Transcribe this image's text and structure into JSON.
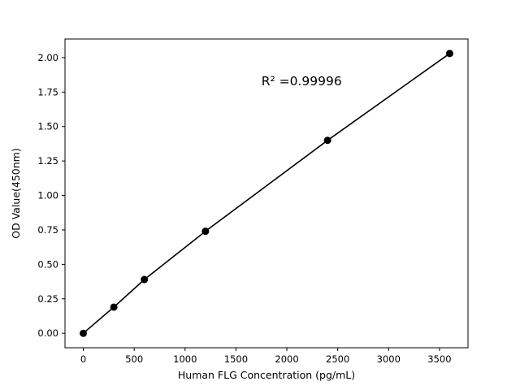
{
  "figure": {
    "background": "#ffffff"
  },
  "chart_data": {
    "type": "scatter",
    "title": "",
    "xlabel": "Human FLG Concentration (pg/mL)",
    "ylabel": "OD Value(450nm)",
    "x": [
      0,
      300,
      600,
      1200,
      2400,
      3600
    ],
    "y": [
      0.0,
      0.19,
      0.39,
      0.74,
      1.4,
      2.03
    ],
    "annotation": {
      "text": "R² =0.99996",
      "x": 1750,
      "y": 1.8
    },
    "xlim": [
      -180,
      3780
    ],
    "ylim": [
      -0.105,
      2.135
    ],
    "xticks": [
      0,
      500,
      1000,
      1500,
      2000,
      2500,
      3000,
      3500
    ],
    "yticks": [
      0.0,
      0.25,
      0.5,
      0.75,
      1.0,
      1.25,
      1.5,
      1.75,
      2.0
    ],
    "grid": false,
    "legend": "none",
    "line_color": "#000000",
    "marker_color": "#000000",
    "marker_size": 4.5
  }
}
